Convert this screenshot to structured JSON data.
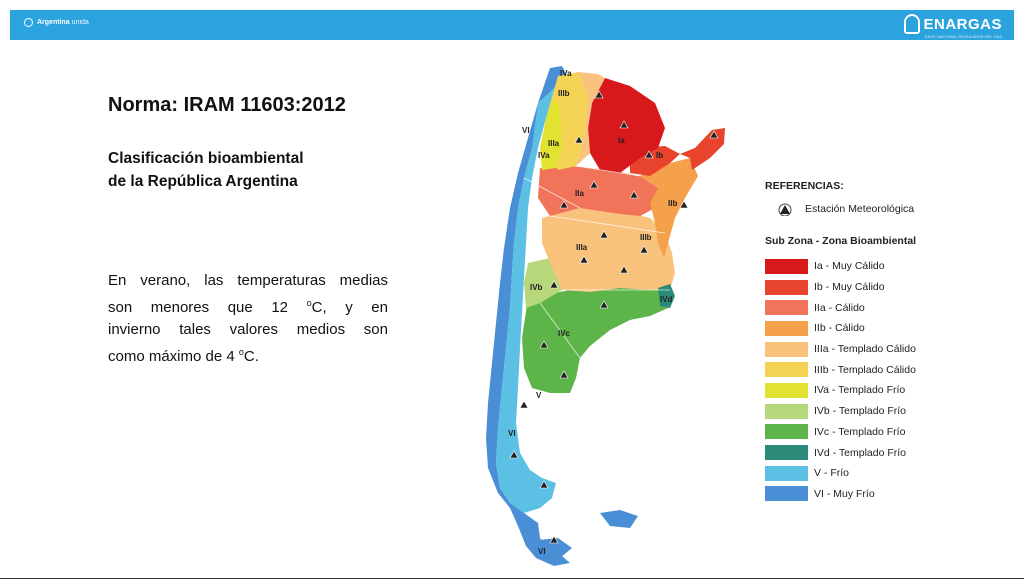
{
  "header": {
    "left_brand": "Argentina",
    "left_brand_sub": "unida",
    "right_logo": "ENARGAS",
    "right_logo_tagline": "ENTE NACIONAL REGULADOR DEL GAS",
    "bar_color": "#2aa3de"
  },
  "slide": {
    "title": "Norma: IRAM 11603:2012",
    "subtitle_line1": "Clasificación bioambiental",
    "subtitle_line2": "de la República Argentina",
    "para_line1": "En verano, las temperaturas medias",
    "para_line2_a": "son menores que 12 ",
    "para_line2_sup": "o",
    "para_line2_b": "C, y en",
    "para_line3": "invierno tales valores medios son",
    "para_line4_a": "como máximo de 4 ",
    "para_line4_sup": "o",
    "para_line4_b": "C."
  },
  "map": {
    "zone_labels": [
      "IVa",
      "IIIb",
      "VI",
      "IIIa",
      "IVa",
      "Ia",
      "Ib",
      "IIa",
      "IIb",
      "IIIa",
      "IIIb",
      "IVb",
      "IVc",
      "IVd",
      "V",
      "VI",
      "VI"
    ],
    "station_icon": "triangle-station-icon"
  },
  "references": {
    "title": "REFERENCIAS:",
    "station_label": "Estación Meteorológica",
    "zone_title": "Sub Zona - Zona Bioambiental",
    "items": [
      {
        "label": "Ia - Muy Cálido",
        "color": "#d7191c"
      },
      {
        "label": "Ib - Muy Cálido",
        "color": "#e8432c"
      },
      {
        "label": "IIa - Cálido",
        "color": "#f0735a"
      },
      {
        "label": "IIb - Cálido",
        "color": "#f5a04a"
      },
      {
        "label": "IIIa - Templado Cálido",
        "color": "#f9c37d"
      },
      {
        "label": "IIIb - Templado Cálido",
        "color": "#f4d354"
      },
      {
        "label": "IVa - Templado Frío",
        "color": "#e2e233"
      },
      {
        "label": "IVb - Templado Frío",
        "color": "#b6d77a"
      },
      {
        "label": "IVc - Templado Frío",
        "color": "#5db54a"
      },
      {
        "label": "IVd - Templado Frío",
        "color": "#2b8a7a"
      },
      {
        "label": "V - Frío",
        "color": "#5bc0e3"
      },
      {
        "label": "VI - Muy Frío",
        "color": "#4a8fd6"
      }
    ]
  }
}
